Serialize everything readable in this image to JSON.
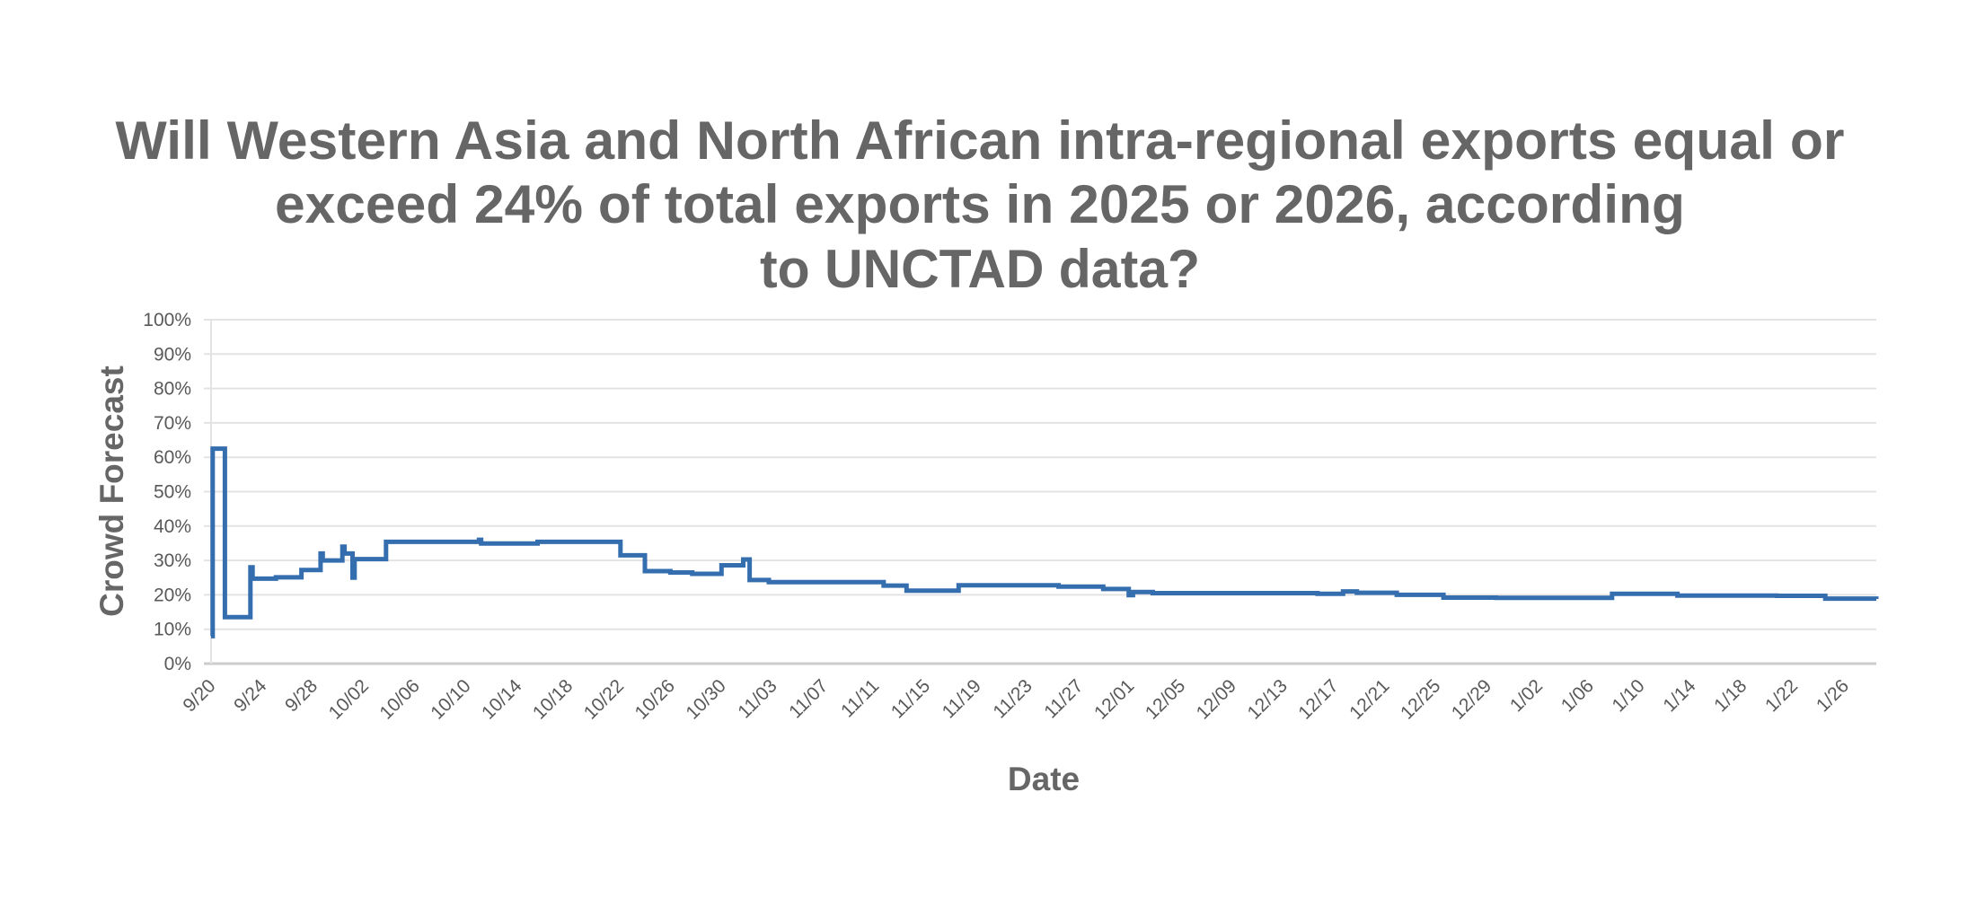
{
  "chart_data": {
    "type": "line",
    "step": true,
    "title_lines": [
      "Will Western Asia and North African intra-regional exports equal or",
      "exceed 24% of total exports in 2025 or 2026, according",
      "to UNCTAD data?"
    ],
    "xlabel": "Date",
    "ylabel": "Crowd Forecast",
    "ylim": [
      0,
      100
    ],
    "y_ticks": [
      "0%",
      "10%",
      "20%",
      "30%",
      "40%",
      "50%",
      "60%",
      "70%",
      "80%",
      "90%",
      "100%"
    ],
    "xlim": [
      "2025-09-20T00:00",
      "2026-01-28T12:00"
    ],
    "x_tick_dates": [
      "2025-09-20",
      "2025-09-24",
      "2025-09-28",
      "2025-10-02",
      "2025-10-06",
      "2025-10-10",
      "2025-10-14",
      "2025-10-18",
      "2025-10-22",
      "2025-10-26",
      "2025-10-30",
      "2025-11-03",
      "2025-11-07",
      "2025-11-11",
      "2025-11-15",
      "2025-11-19",
      "2025-11-23",
      "2025-11-27",
      "2025-12-01",
      "2025-12-05",
      "2025-12-09",
      "2025-12-13",
      "2025-12-17",
      "2025-12-21",
      "2025-12-25",
      "2025-12-29",
      "2026-01-02",
      "2026-01-06",
      "2026-01-10",
      "2026-01-14",
      "2026-01-18",
      "2026-01-22",
      "2026-01-26"
    ],
    "x_tick_labels": [
      "9/20",
      "9/24",
      "9/28",
      "10/02",
      "10/06",
      "10/10",
      "10/14",
      "10/18",
      "10/22",
      "10/26",
      "10/30",
      "11/03",
      "11/07",
      "11/11",
      "11/15",
      "11/19",
      "11/23",
      "11/27",
      "12/01",
      "12/05",
      "12/09",
      "12/13",
      "12/17",
      "12/21",
      "12/25",
      "12/29",
      "1/02",
      "1/06",
      "1/10",
      "1/14",
      "1/18",
      "1/22",
      "1/26"
    ],
    "grid": true,
    "legend": "none",
    "series": [
      {
        "color": "#356EAF",
        "points": [
          [
            "2025-09-20T00:00",
            8
          ],
          [
            "2025-09-20T03:00",
            62.5
          ],
          [
            "2025-09-21T02:00",
            13.5
          ],
          [
            "2025-09-23T02:00",
            28
          ],
          [
            "2025-09-23T06:00",
            24.7
          ],
          [
            "2025-09-25T02:00",
            25.1
          ],
          [
            "2025-09-27T02:00",
            27.2
          ],
          [
            "2025-09-28T14:00",
            32
          ],
          [
            "2025-09-28T18:00",
            30
          ],
          [
            "2025-09-30T07:00",
            34
          ],
          [
            "2025-09-30T11:00",
            32
          ],
          [
            "2025-10-01T02:00",
            25
          ],
          [
            "2025-10-01T06:00",
            30.4
          ],
          [
            "2025-10-03T17:00",
            35.4
          ],
          [
            "2025-10-11T00:00",
            36
          ],
          [
            "2025-10-11T04:00",
            34.9
          ],
          [
            "2025-10-15T14:00",
            35.4
          ],
          [
            "2025-10-22T02:00",
            31.5
          ],
          [
            "2025-10-24T00:00",
            26.9
          ],
          [
            "2025-10-26T00:00",
            26.5
          ],
          [
            "2025-10-27T17:00",
            26.1
          ],
          [
            "2025-10-30T00:00",
            28.6
          ],
          [
            "2025-10-31T17:00",
            30.3
          ],
          [
            "2025-11-01T05:00",
            24.3
          ],
          [
            "2025-11-02T17:00",
            23.7
          ],
          [
            "2025-11-11T17:00",
            22.7
          ],
          [
            "2025-11-13T12:00",
            21.2
          ],
          [
            "2025-11-17T14:00",
            22.8
          ],
          [
            "2025-11-25T10:00",
            22.4
          ],
          [
            "2025-11-28T22:00",
            21.7
          ],
          [
            "2025-11-30T22:00",
            19.9
          ],
          [
            "2025-12-01T06:00",
            20.8
          ],
          [
            "2025-12-02T19:00",
            20.5
          ],
          [
            "2025-12-15T17:00",
            20.3
          ],
          [
            "2025-12-17T17:00",
            21.0
          ],
          [
            "2025-12-18T19:00",
            20.6
          ],
          [
            "2025-12-21T22:00",
            20.0
          ],
          [
            "2025-12-25T14:00",
            19.2
          ],
          [
            "2025-12-29T17:00",
            19.1
          ],
          [
            "2026-01-07T19:00",
            20.3
          ],
          [
            "2026-01-12T22:00",
            19.8
          ],
          [
            "2026-01-20T17:00",
            19.7
          ],
          [
            "2026-01-24T12:00",
            18.9
          ],
          [
            "2026-01-28T12:00",
            18.8
          ]
        ]
      }
    ]
  }
}
